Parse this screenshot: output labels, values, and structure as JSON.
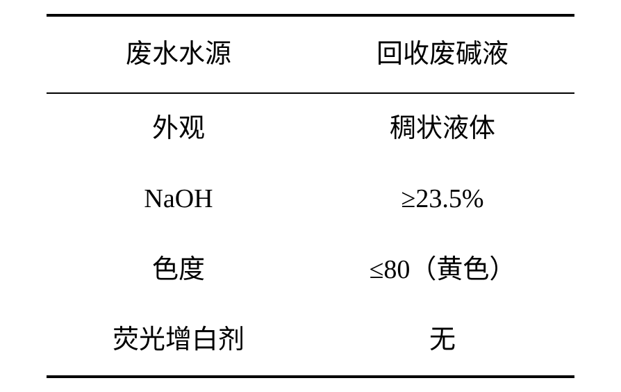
{
  "table": {
    "header": {
      "col1": "废水水源",
      "col2": "回收废碱液"
    },
    "rows": [
      {
        "col1": "外观",
        "col2": "稠状液体"
      },
      {
        "col1": "NaOH",
        "col2": "≥23.5%"
      },
      {
        "col1": "色度",
        "col2": "≤80（黄色）"
      },
      {
        "col1": "荧光增白剂",
        "col2": "无"
      }
    ],
    "styling": {
      "border_top_width": 4,
      "border_header_width": 2,
      "border_bottom_width": 4,
      "border_color": "#000000",
      "background_color": "#ffffff",
      "text_color": "#000000",
      "font_size": 38,
      "font_family": "SimSun",
      "cell_padding_v": 24,
      "header_padding_v": 28,
      "column_count": 2,
      "alignment": "center"
    }
  }
}
